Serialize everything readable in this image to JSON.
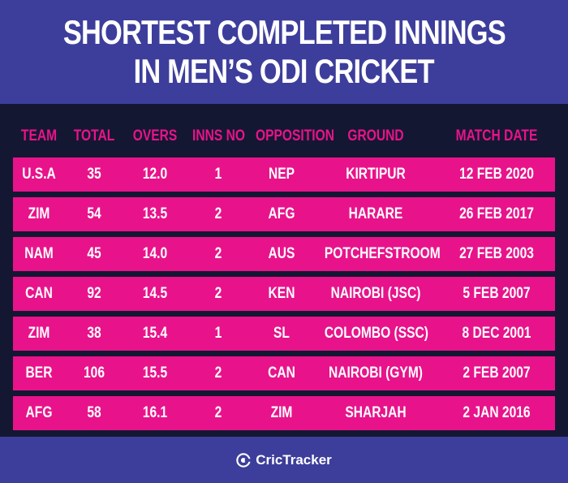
{
  "title": {
    "line1": "SHORTEST COMPLETED INNINGS",
    "line2": "IN MEN’S ODI CRICKET"
  },
  "colors": {
    "header_bg": "#3d3e9b",
    "table_bg": "#141732",
    "accent": "#e8138b",
    "text": "#ffffff"
  },
  "columns": [
    "TEAM",
    "TOTAL",
    "OVERS",
    "INNS NO",
    "OPPOSITION",
    "GROUND",
    "MATCH DATE"
  ],
  "rows": [
    [
      "U.S.A",
      "35",
      "12.0",
      "1",
      "NEP",
      "KIRTIPUR",
      "12 FEB 2020"
    ],
    [
      "ZIM",
      "54",
      "13.5",
      "2",
      "AFG",
      "HARARE",
      "26 FEB 2017"
    ],
    [
      "NAM",
      "45",
      "14.0",
      "2",
      "AUS",
      "POTCHEFSTROOM",
      "27 FEB 2003"
    ],
    [
      "CAN",
      "92",
      "14.5",
      "2",
      "KEN",
      "NAIROBI (JSC)",
      "5 FEB 2007"
    ],
    [
      "ZIM",
      "38",
      "15.4",
      "1",
      "SL",
      "COLOMBO (SSC)",
      "8 DEC 2001"
    ],
    [
      "BER",
      "106",
      "15.5",
      "2",
      "CAN",
      "NAIROBI (GYM)",
      "2 FEB 2007"
    ],
    [
      "AFG",
      "58",
      "16.1",
      "2",
      "ZIM",
      "SHARJAH",
      "2 JAN 2016"
    ]
  ],
  "footer": {
    "brand_icon": "crictracker-logo-icon",
    "brand_name": "CricTracker"
  }
}
